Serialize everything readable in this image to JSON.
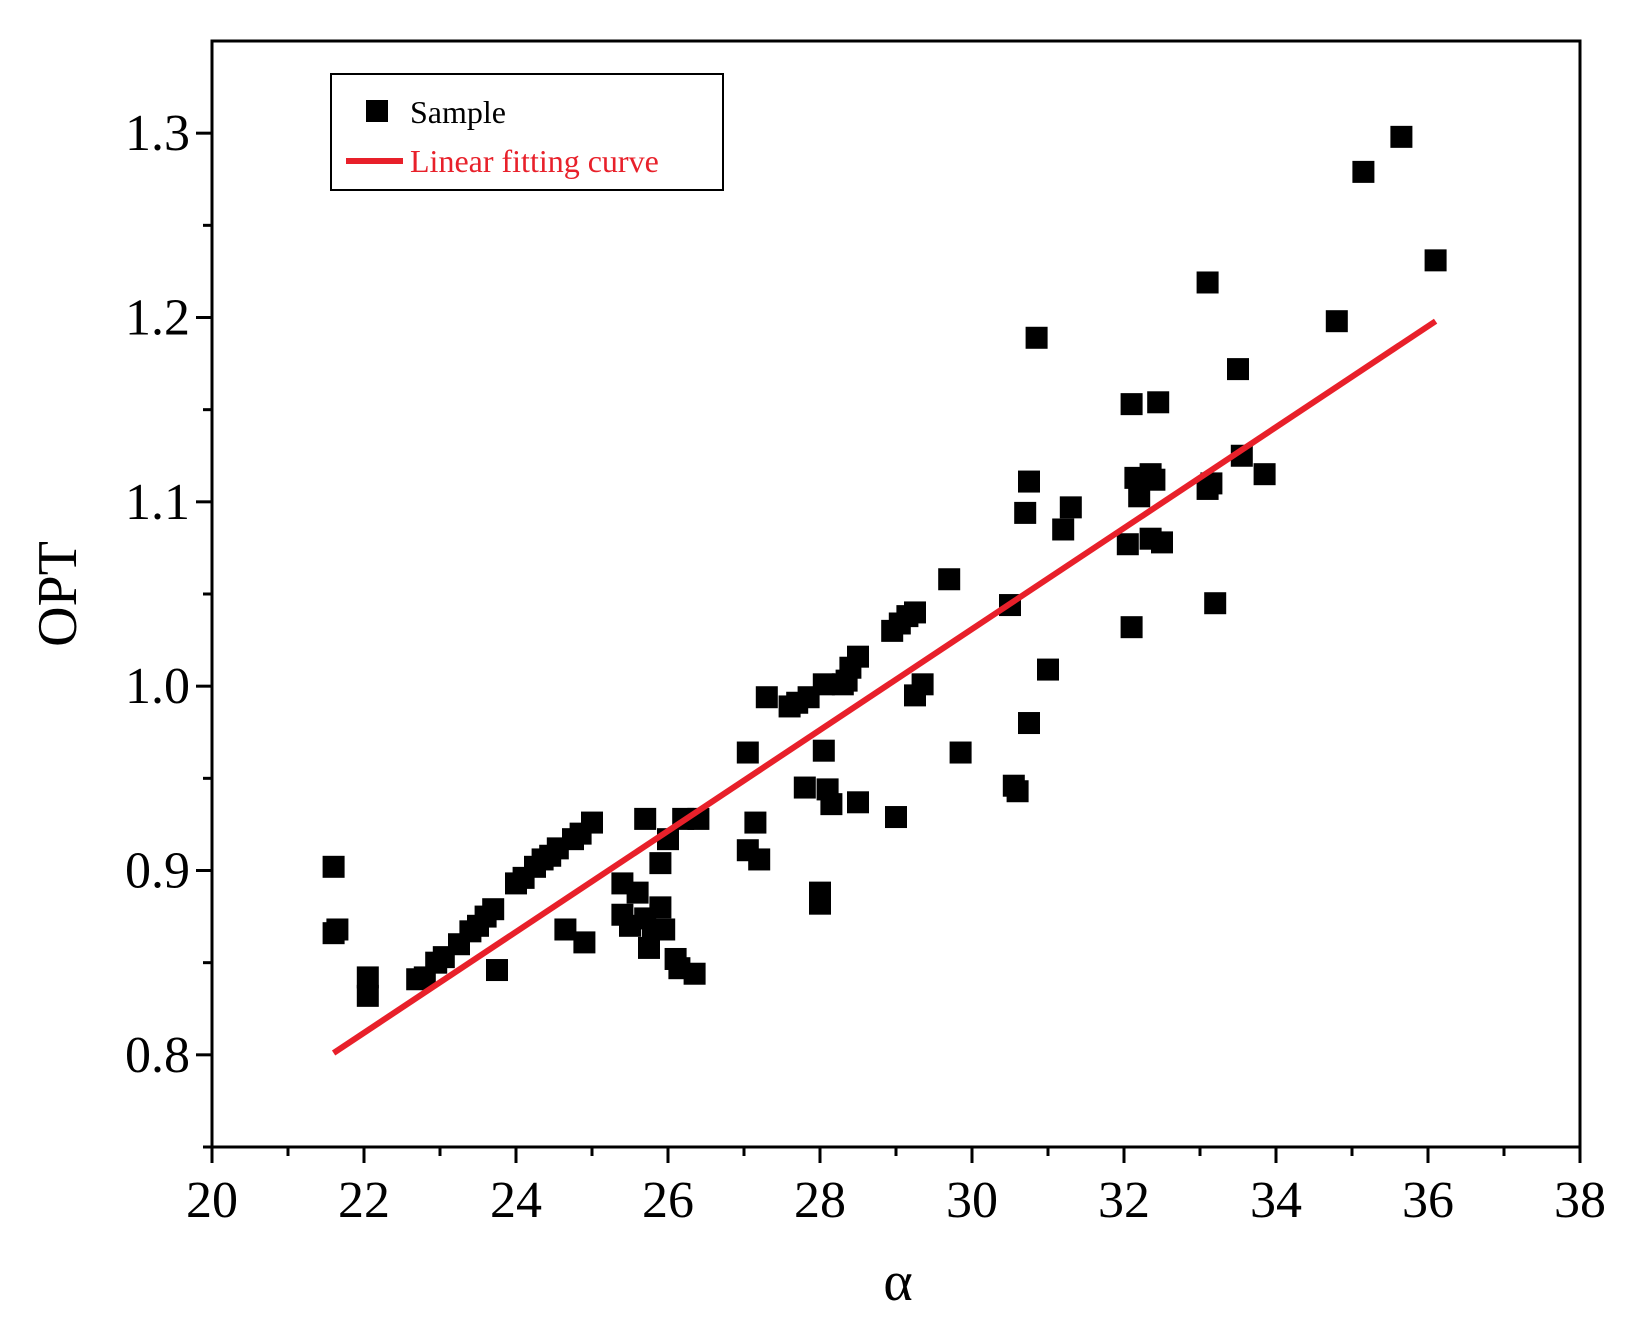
{
  "chart_data": {
    "type": "scatter",
    "xlabel": "α",
    "ylabel": "OPT",
    "xlim": [
      20,
      38
    ],
    "ylim": [
      0.75,
      1.35
    ],
    "x_ticks": [
      20,
      22,
      24,
      26,
      28,
      30,
      32,
      34,
      36,
      38
    ],
    "x_tick_labels": [
      "20",
      "22",
      "24",
      "26",
      "28",
      "30",
      "32",
      "34",
      "36",
      "38"
    ],
    "y_ticks": [
      0.8,
      0.9,
      1.0,
      1.1,
      1.2,
      1.3
    ],
    "y_tick_labels": [
      "0.8",
      "0.9",
      "1.0",
      "1.1",
      "1.2",
      "1.3"
    ],
    "grid": false,
    "legend_position": "top-left",
    "series": [
      {
        "name": "Sample",
        "kind": "scatter",
        "marker": "square",
        "color": "#000000",
        "points": [
          [
            21.6,
            0.902
          ],
          [
            21.6,
            0.866
          ],
          [
            21.65,
            0.868
          ],
          [
            22.05,
            0.832
          ],
          [
            22.05,
            0.842
          ],
          [
            22.7,
            0.841
          ],
          [
            22.8,
            0.842
          ],
          [
            22.95,
            0.85
          ],
          [
            23.05,
            0.853
          ],
          [
            23.25,
            0.86
          ],
          [
            23.4,
            0.867
          ],
          [
            23.5,
            0.87
          ],
          [
            23.6,
            0.875
          ],
          [
            23.7,
            0.879
          ],
          [
            23.75,
            0.846
          ],
          [
            24.0,
            0.893
          ],
          [
            24.1,
            0.896
          ],
          [
            24.25,
            0.902
          ],
          [
            24.35,
            0.906
          ],
          [
            24.45,
            0.908
          ],
          [
            24.55,
            0.912
          ],
          [
            24.65,
            0.868
          ],
          [
            24.75,
            0.917
          ],
          [
            24.85,
            0.92
          ],
          [
            24.9,
            0.861
          ],
          [
            25.0,
            0.926
          ],
          [
            25.4,
            0.893
          ],
          [
            25.4,
            0.876
          ],
          [
            25.5,
            0.87
          ],
          [
            25.6,
            0.888
          ],
          [
            25.7,
            0.928
          ],
          [
            25.7,
            0.874
          ],
          [
            25.75,
            0.858
          ],
          [
            25.8,
            0.868
          ],
          [
            25.9,
            0.904
          ],
          [
            25.9,
            0.88
          ],
          [
            25.95,
            0.868
          ],
          [
            26.0,
            0.917
          ],
          [
            26.1,
            0.852
          ],
          [
            26.15,
            0.847
          ],
          [
            26.2,
            0.928
          ],
          [
            26.35,
            0.844
          ],
          [
            26.4,
            0.928
          ],
          [
            27.05,
            0.964
          ],
          [
            27.05,
            0.911
          ],
          [
            27.15,
            0.926
          ],
          [
            27.2,
            0.906
          ],
          [
            27.3,
            0.994
          ],
          [
            27.6,
            0.989
          ],
          [
            27.7,
            0.991
          ],
          [
            27.8,
            0.945
          ],
          [
            27.85,
            0.994
          ],
          [
            28.0,
            0.888
          ],
          [
            28.0,
            0.882
          ],
          [
            28.05,
            1.001
          ],
          [
            28.05,
            0.965
          ],
          [
            28.1,
            0.944
          ],
          [
            28.15,
            0.936
          ],
          [
            28.3,
            1.001
          ],
          [
            28.35,
            1.003
          ],
          [
            28.4,
            1.01
          ],
          [
            28.5,
            1.016
          ],
          [
            28.5,
            0.937
          ],
          [
            28.95,
            1.03
          ],
          [
            29.0,
            0.929
          ],
          [
            29.05,
            1.034
          ],
          [
            29.15,
            1.038
          ],
          [
            29.25,
            1.04
          ],
          [
            29.25,
            0.995
          ],
          [
            29.35,
            1.001
          ],
          [
            29.7,
            1.058
          ],
          [
            29.85,
            0.964
          ],
          [
            30.5,
            1.044
          ],
          [
            30.55,
            0.946
          ],
          [
            30.6,
            0.943
          ],
          [
            30.7,
            1.094
          ],
          [
            30.75,
            1.111
          ],
          [
            30.75,
            0.98
          ],
          [
            30.85,
            1.189
          ],
          [
            31.0,
            1.009
          ],
          [
            31.2,
            1.085
          ],
          [
            31.3,
            1.097
          ],
          [
            32.05,
            1.077
          ],
          [
            32.1,
            1.153
          ],
          [
            32.1,
            1.032
          ],
          [
            32.15,
            1.113
          ],
          [
            32.2,
            1.103
          ],
          [
            32.35,
            1.115
          ],
          [
            32.35,
            1.08
          ],
          [
            32.4,
            1.112
          ],
          [
            32.45,
            1.154
          ],
          [
            32.5,
            1.078
          ],
          [
            33.1,
            1.219
          ],
          [
            33.1,
            1.107
          ],
          [
            33.15,
            1.11
          ],
          [
            33.2,
            1.045
          ],
          [
            33.5,
            1.172
          ],
          [
            33.55,
            1.125
          ],
          [
            33.85,
            1.115
          ],
          [
            34.8,
            1.198
          ],
          [
            35.15,
            1.279
          ],
          [
            35.65,
            1.298
          ],
          [
            36.1,
            1.231
          ]
        ]
      },
      {
        "name": "Linear fitting curve",
        "kind": "line",
        "color": "#e8202a",
        "x": [
          21.6,
          36.1
        ],
        "y": [
          0.801,
          1.198
        ]
      }
    ]
  }
}
